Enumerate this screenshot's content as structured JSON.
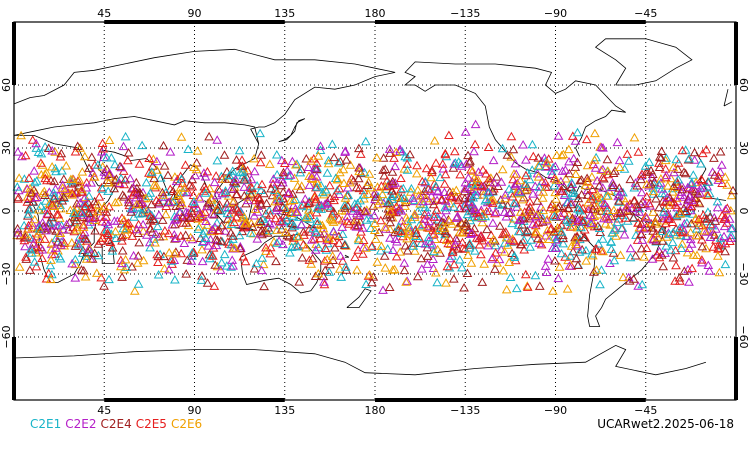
{
  "map": {
    "projection": "cylindrical-equidistant",
    "center_lon": 180,
    "lat_range": [
      -90,
      90
    ],
    "grid": true,
    "lon_ticks": [
      {
        "lon": 45,
        "label": "45"
      },
      {
        "lon": 90,
        "label": "90"
      },
      {
        "lon": 135,
        "label": "135"
      },
      {
        "lon": 180,
        "label": "180"
      },
      {
        "lon": 225,
        "label": "−135"
      },
      {
        "lon": 270,
        "label": "−90"
      },
      {
        "lon": 315,
        "label": "−45"
      }
    ],
    "lat_ticks": [
      {
        "lat": 60,
        "label": "60"
      },
      {
        "lat": 30,
        "label": "30"
      },
      {
        "lat": 0,
        "label": "0"
      },
      {
        "lat": -30,
        "label": "−30"
      },
      {
        "lat": -60,
        "label": "−60"
      }
    ],
    "coastline_color": "#000000",
    "marker": "open-triangle",
    "observation_lat_band": [
      -45,
      45
    ]
  },
  "series": [
    {
      "name": "C2E1",
      "color": "#18b4c8"
    },
    {
      "name": "C2E2",
      "color": "#b41ec8"
    },
    {
      "name": "C2E4",
      "color": "#a01e1e"
    },
    {
      "name": "C2E5",
      "color": "#e61e1e"
    },
    {
      "name": "C2E6",
      "color": "#f0a000"
    }
  ],
  "product_label": "UCARwet2.2025-06-18"
}
